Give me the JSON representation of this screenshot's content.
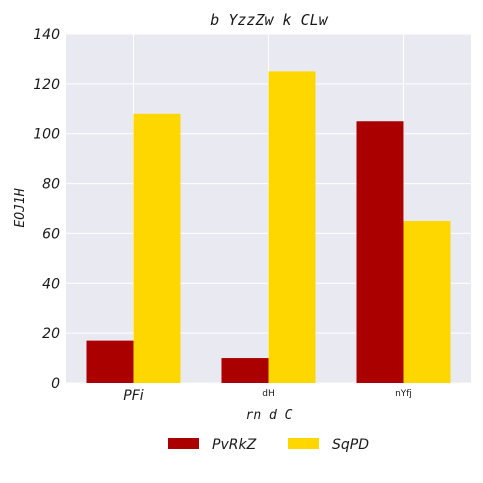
{
  "chart_data": {
    "type": "bar",
    "title": "b YzzZw k CLw",
    "xlabel": "rn d  C",
    "ylabel": "EOJ1H",
    "categories": [
      "PFi",
      "dH",
      "nYfj"
    ],
    "series": [
      {
        "name": "PvRkZ",
        "values": [
          17,
          10,
          105
        ],
        "color": "#aa0000"
      },
      {
        "name": "SqPD",
        "values": [
          108,
          125,
          65
        ],
        "color": "#ffd700"
      }
    ],
    "ylim": [
      0,
      140
    ],
    "yticks": [
      0,
      20,
      40,
      60,
      80,
      100,
      120,
      140
    ],
    "grid": true,
    "legend_position": "bottom-center",
    "background_color": "#e9e9f1"
  }
}
